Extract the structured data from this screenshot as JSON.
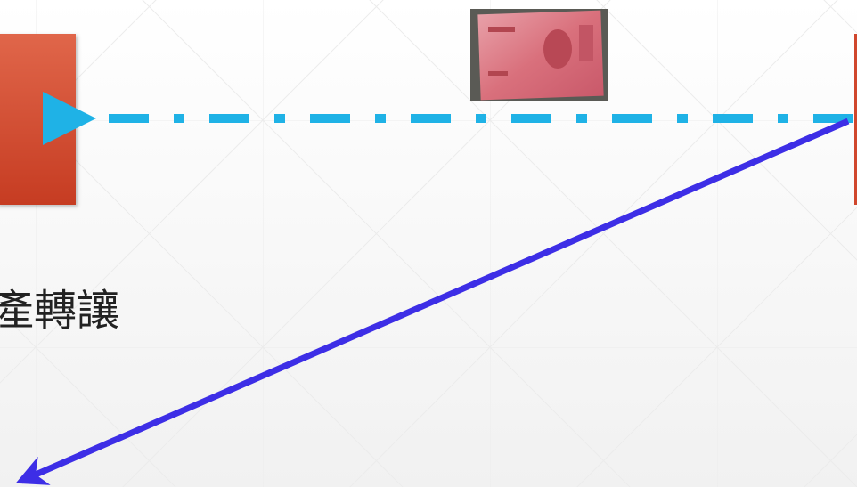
{
  "slide": {
    "text": "產轉讓"
  }
}
